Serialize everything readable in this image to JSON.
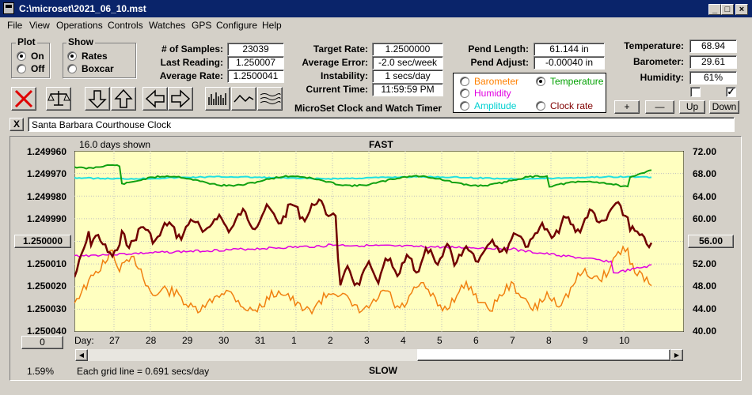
{
  "window": {
    "title": "C:\\microset\\2021_06_10.mst"
  },
  "menu": [
    {
      "label": "File"
    },
    {
      "label": "View"
    },
    {
      "label": "Operations"
    },
    {
      "label": "Controls"
    },
    {
      "label": "Watches"
    },
    {
      "label": "GPS"
    },
    {
      "label": "Configure"
    },
    {
      "label": "Help"
    }
  ],
  "plot_group": {
    "title": "Plot",
    "on": "On",
    "off": "Off",
    "selected": "On"
  },
  "show_group": {
    "title": "Show",
    "rates": "Rates",
    "boxcar": "Boxcar",
    "selected": "Rates"
  },
  "stats": {
    "samples_label": "# of Samples:",
    "samples": "23039",
    "last_label": "Last Reading:",
    "last": "1.250007",
    "avg_rate_label": "Average Rate:",
    "avg_rate": "1.2500041",
    "target_label": "Target Rate:",
    "target": "1.2500000",
    "avg_err_label": "Average Error:",
    "avg_err": "-2.0 sec/week",
    "instab_label": "Instability:",
    "instab": "1 secs/day",
    "time_label": "Current Time:",
    "time": "11:59:59 PM",
    "pend_len_label": "Pend Length:",
    "pend_len": "61.144 in",
    "pend_adj_label": "Pend Adjust:",
    "pend_adj": "-0.00040 in",
    "temp_label": "Temperature:",
    "temp": "68.94",
    "baro_label": "Barometer:",
    "baro": "29.61",
    "humid_label": "Humidity:",
    "humid": "61%"
  },
  "app_caption": "MicroSet Clock and Watch Timer",
  "legend": {
    "barometer": "Barometer",
    "temperature": "Temperature",
    "humidity": "Humidity",
    "amplitude": "Amplitude",
    "clock_rate": "Clock rate",
    "selected": "Temperature",
    "colors": {
      "barometer": "#ff8000",
      "temperature": "#00a000",
      "humidity": "#e000e0",
      "amplitude": "#00d0d0",
      "clock_rate": "#800000"
    }
  },
  "aux_buttons": {
    "plus": "+",
    "minus": "—",
    "up": "Up",
    "down": "Down"
  },
  "checks": {
    "left": false,
    "right": true
  },
  "clock": {
    "x_button": "X",
    "name": "Santa Barbara Courthouse Clock"
  },
  "graph": {
    "days_shown": "16.0 days shown",
    "fast": "FAST",
    "slow": "SLOW",
    "grid_note": "Each grid line = 0.691 secs/day",
    "left_ticks": [
      "1.249960",
      "1.249970",
      "1.249980",
      "1.249990",
      "1.250000",
      "1.250010",
      "1.250020",
      "1.250030",
      "1.250040"
    ],
    "left_button": "1.250000",
    "right_ticks": [
      "72.00",
      "68.00",
      "64.00",
      "60.00",
      "56.00",
      "52.00",
      "48.00",
      "44.00",
      "40.00"
    ],
    "right_button": "56.00",
    "day_label": "Day:",
    "days": [
      "27",
      "28",
      "29",
      "30",
      "31",
      "1",
      "2",
      "3",
      "4",
      "5",
      "6",
      "7",
      "8",
      "9",
      "10"
    ],
    "zero_button": "0",
    "percent": "1.59%"
  }
}
